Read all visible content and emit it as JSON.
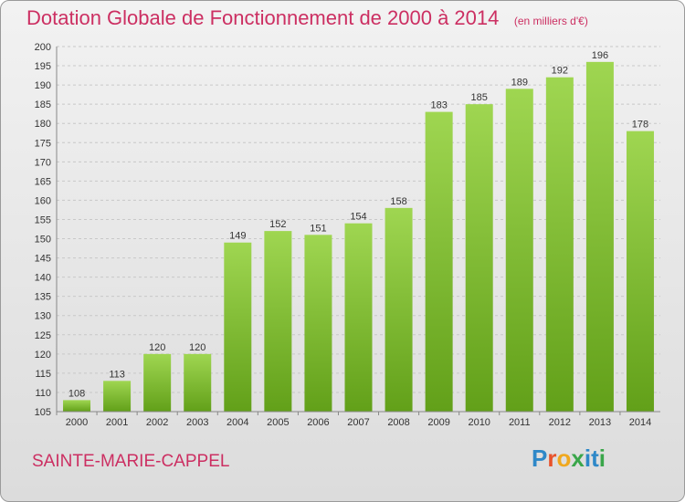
{
  "header": {
    "title": "Dotation Globale de Fonctionnement de 2000 à 2014",
    "unit_note": "(en milliers d'€)"
  },
  "footer": {
    "commune": "SAINTE-MARIE-CAPPEL",
    "logo_text": "Proxiti"
  },
  "colors": {
    "title": "#cc2f62",
    "bar_light": "#9fd651",
    "bar_dark": "#62a019",
    "grid": "#c8c8c8"
  },
  "chart_data": {
    "type": "bar",
    "title": "Dotation Globale de Fonctionnement de 2000 à 2014",
    "subtitle": "(en milliers d'€)",
    "categories": [
      "2000",
      "2001",
      "2002",
      "2003",
      "2004",
      "2005",
      "2006",
      "2007",
      "2008",
      "2009",
      "2010",
      "2011",
      "2012",
      "2013",
      "2014"
    ],
    "values": [
      108,
      113,
      120,
      120,
      149,
      152,
      151,
      154,
      158,
      183,
      185,
      189,
      192,
      196,
      178
    ],
    "ylim": [
      105,
      200
    ],
    "yticks": [
      105,
      110,
      115,
      120,
      125,
      130,
      135,
      140,
      145,
      150,
      155,
      160,
      165,
      170,
      175,
      180,
      185,
      190,
      195,
      200
    ],
    "grid": true,
    "data_labels": true
  }
}
